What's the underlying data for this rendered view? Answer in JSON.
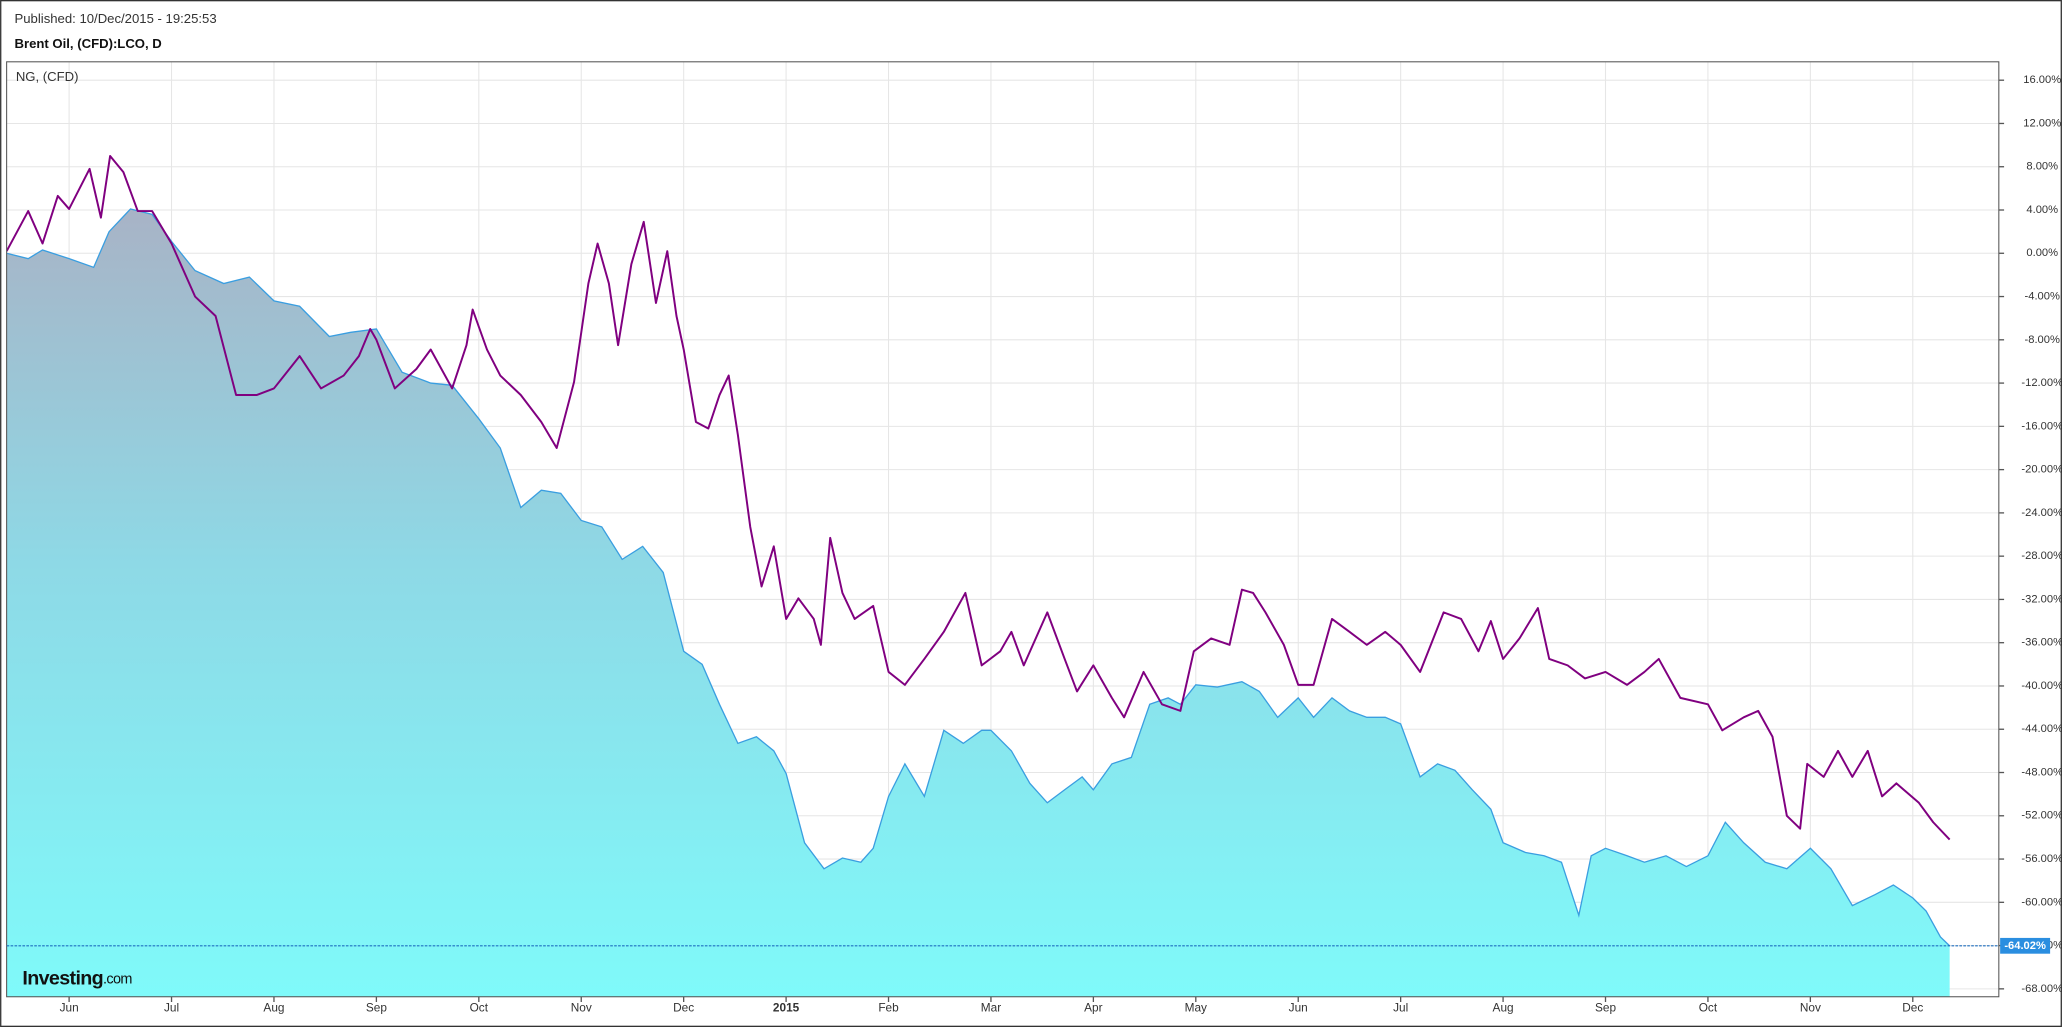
{
  "published": "Published: 10/Dec/2015 - 19:25:53",
  "chart_data": {
    "type": "area-line",
    "title": "Brent Oil, (CFD):LCO, D",
    "watermark": [
      "Investing",
      ".com"
    ],
    "xlim": [
      -0.61,
      18.84
    ],
    "ylim": [
      -68.73,
      17.7
    ],
    "xticks": [
      {
        "value": 0,
        "label": "Jun"
      },
      {
        "value": 1,
        "label": "Jul"
      },
      {
        "value": 2,
        "label": "Aug"
      },
      {
        "value": 3,
        "label": "Sep"
      },
      {
        "value": 4,
        "label": "Oct"
      },
      {
        "value": 5,
        "label": "Nov"
      },
      {
        "value": 6,
        "label": "Dec"
      },
      {
        "value": 7,
        "label": "2015"
      },
      {
        "value": 8,
        "label": "Feb"
      },
      {
        "value": 9,
        "label": "Mar"
      },
      {
        "value": 10,
        "label": "Apr"
      },
      {
        "value": 11,
        "label": "May"
      },
      {
        "value": 12,
        "label": "Jun"
      },
      {
        "value": 13,
        "label": "Jul"
      },
      {
        "value": 14,
        "label": "Aug"
      },
      {
        "value": 15,
        "label": "Sep"
      },
      {
        "value": 16,
        "label": "Oct"
      },
      {
        "value": 17,
        "label": "Nov"
      },
      {
        "value": 18,
        "label": "Dec"
      }
    ],
    "yticks": [
      {
        "value": 16,
        "label": "16.00%"
      },
      {
        "value": 12,
        "label": "12.00%"
      },
      {
        "value": 8,
        "label": "8.00%"
      },
      {
        "value": 4,
        "label": "4.00%"
      },
      {
        "value": 0,
        "label": "0.00%"
      },
      {
        "value": -4,
        "label": "-4.00%"
      },
      {
        "value": -8,
        "label": "-8.00%"
      },
      {
        "value": -12,
        "label": "-12.00%"
      },
      {
        "value": -16,
        "label": "-16.00%"
      },
      {
        "value": -20,
        "label": "-20.00%"
      },
      {
        "value": -24,
        "label": "-24.00%"
      },
      {
        "value": -28,
        "label": "-28.00%"
      },
      {
        "value": -32,
        "label": "-32.00%"
      },
      {
        "value": -36,
        "label": "-36.00%"
      },
      {
        "value": -40,
        "label": "-40.00%"
      },
      {
        "value": -44,
        "label": "-44.00%"
      },
      {
        "value": -48,
        "label": "-48.00%"
      },
      {
        "value": -52,
        "label": "-52.00%"
      },
      {
        "value": -56,
        "label": "-56.00%"
      },
      {
        "value": -60,
        "label": "-60.00%"
      },
      {
        "value": -64,
        "label": "-64.00%"
      },
      {
        "value": -68,
        "label": "-68.00%"
      }
    ],
    "grid": true,
    "current_value": {
      "value": -64.02,
      "label": "-64.02%"
    },
    "series": [
      {
        "name": "Brent Oil",
        "style": "area",
        "color": "#3a9ee0",
        "x": [
          -0.61,
          -0.4,
          -0.26,
          0,
          0.24,
          0.39,
          0.6,
          0.81,
          1,
          1.23,
          1.51,
          1.76,
          2,
          2.25,
          2.54,
          2.75,
          3,
          3.25,
          3.53,
          3.74,
          4,
          4.21,
          4.41,
          4.61,
          4.8,
          5,
          5.2,
          5.4,
          5.6,
          5.8,
          6,
          6.18,
          6.35,
          6.53,
          6.71,
          6.88,
          7,
          7.18,
          7.37,
          7.55,
          7.73,
          7.85,
          8,
          8.16,
          8.35,
          8.54,
          8.73,
          8.91,
          9,
          9.2,
          9.38,
          9.55,
          9.72,
          9.89,
          10,
          10.18,
          10.37,
          10.55,
          10.73,
          10.85,
          11,
          11.21,
          11.45,
          11.62,
          11.8,
          12,
          12.15,
          12.33,
          12.5,
          12.67,
          12.85,
          13,
          13.19,
          13.36,
          13.53,
          13.7,
          13.88,
          14,
          14.22,
          14.4,
          14.57,
          14.74,
          14.86,
          15,
          15.21,
          15.38,
          15.59,
          15.79,
          16,
          16.17,
          16.35,
          16.56,
          16.77,
          17,
          17.2,
          17.41,
          17.63,
          17.81,
          18,
          18.13,
          18.27,
          18.36
        ],
        "values": [
          0,
          -0.5,
          0.3,
          -0.5,
          -1.3,
          2,
          4.1,
          3.6,
          1.1,
          -1.6,
          -2.8,
          -2.2,
          -4.4,
          -4.9,
          -7.7,
          -7.3,
          -7,
          -11,
          -12,
          -12.2,
          -15.3,
          -18,
          -23.5,
          -21.9,
          -22.2,
          -24.7,
          -25.3,
          -28.3,
          -27.1,
          -29.5,
          -36.8,
          -38,
          -41.7,
          -45.3,
          -44.7,
          -46,
          -48.1,
          -54.5,
          -56.9,
          -55.9,
          -56.3,
          -55,
          -50.2,
          -47.2,
          -50.2,
          -44.1,
          -45.3,
          -44.1,
          -44.1,
          -46,
          -49,
          -50.8,
          -49.6,
          -48.4,
          -49.6,
          -47.2,
          -46.6,
          -41.7,
          -41.1,
          -41.7,
          -39.9,
          -40.1,
          -39.6,
          -40.5,
          -42.9,
          -41.1,
          -42.9,
          -41.1,
          -42.3,
          -42.9,
          -42.9,
          -43.5,
          -48.4,
          -47.2,
          -47.8,
          -49.6,
          -51.4,
          -54.5,
          -55.4,
          -55.7,
          -56.3,
          -61.2,
          -55.7,
          -55,
          -55.7,
          -56.3,
          -55.7,
          -56.7,
          -55.7,
          -52.6,
          -54.5,
          -56.3,
          -56.9,
          -55,
          -56.9,
          -60.3,
          -59.3,
          -58.4,
          -59.6,
          -60.8,
          -63.2,
          -64.02
        ]
      },
      {
        "name": "NG,  (CFD)",
        "style": "line",
        "color": "#800080",
        "x": [
          -0.61,
          -0.4,
          -0.26,
          -0.11,
          0,
          0.2,
          0.31,
          0.4,
          0.53,
          0.67,
          0.81,
          1,
          1.23,
          1.43,
          1.63,
          1.83,
          2,
          2.25,
          2.46,
          2.68,
          2.83,
          2.94,
          3,
          3.18,
          3.39,
          3.53,
          3.74,
          3.88,
          3.94,
          4.08,
          4.21,
          4.41,
          4.61,
          4.76,
          4.93,
          5.07,
          5.16,
          5.27,
          5.36,
          5.49,
          5.61,
          5.73,
          5.84,
          5.93,
          6,
          6.12,
          6.24,
          6.35,
          6.44,
          6.53,
          6.65,
          6.76,
          6.88,
          7,
          7.12,
          7.27,
          7.34,
          7.43,
          7.55,
          7.67,
          7.85,
          8,
          8.16,
          8.35,
          8.54,
          8.75,
          8.91,
          9.09,
          9.2,
          9.32,
          9.55,
          9.72,
          9.84,
          10,
          10.18,
          10.3,
          10.49,
          10.67,
          10.85,
          10.98,
          11.15,
          11.33,
          11.45,
          11.56,
          11.68,
          11.86,
          12,
          12.15,
          12.33,
          12.5,
          12.67,
          12.85,
          13,
          13.19,
          13.42,
          13.59,
          13.76,
          13.88,
          14,
          14.16,
          14.34,
          14.45,
          14.63,
          14.8,
          15,
          15.21,
          15.38,
          15.52,
          15.73,
          16,
          16.14,
          16.35,
          16.49,
          16.63,
          16.77,
          16.9,
          16.97,
          17.13,
          17.27,
          17.41,
          17.56,
          17.7,
          17.84,
          18.06,
          18.2,
          18.36
        ],
        "values": [
          0.2,
          3.9,
          0.9,
          5.3,
          4.1,
          7.8,
          3.3,
          9,
          7.5,
          3.9,
          3.9,
          0.9,
          -4,
          -5.8,
          -13.1,
          -13.1,
          -12.5,
          -9.5,
          -12.5,
          -11.3,
          -9.5,
          -7,
          -8,
          -12.5,
          -10.7,
          -8.9,
          -12.5,
          -8.5,
          -5.2,
          -8.9,
          -11.3,
          -13.1,
          -15.6,
          -18,
          -11.9,
          -2.8,
          0.9,
          -2.8,
          -8.5,
          -1,
          2.9,
          -4.6,
          0.2,
          -5.8,
          -8.9,
          -15.6,
          -16.2,
          -13.1,
          -11.3,
          -16.8,
          -25.3,
          -30.8,
          -27.1,
          -33.8,
          -31.9,
          -33.8,
          -36.2,
          -26.3,
          -31.4,
          -33.8,
          -32.6,
          -38.7,
          -39.9,
          -37.5,
          -35,
          -31.4,
          -38.1,
          -36.8,
          -35,
          -38.1,
          -33.2,
          -37.5,
          -40.5,
          -38.1,
          -41.1,
          -42.9,
          -38.7,
          -41.7,
          -42.3,
          -36.8,
          -35.6,
          -36.2,
          -31.1,
          -31.4,
          -33.2,
          -36.2,
          -39.9,
          -39.9,
          -33.8,
          -35,
          -36.2,
          -35,
          -36.2,
          -38.7,
          -33.2,
          -33.8,
          -36.8,
          -34,
          -37.5,
          -35.6,
          -32.8,
          -37.5,
          -38.1,
          -39.3,
          -38.7,
          -39.9,
          -38.7,
          -37.5,
          -41.1,
          -41.7,
          -44.1,
          -42.9,
          -42.3,
          -44.7,
          -52,
          -53.2,
          -47.2,
          -48.4,
          -46,
          -48.4,
          -46,
          -50.2,
          -49,
          -50.8,
          -52.6,
          -54.2
        ]
      }
    ]
  }
}
